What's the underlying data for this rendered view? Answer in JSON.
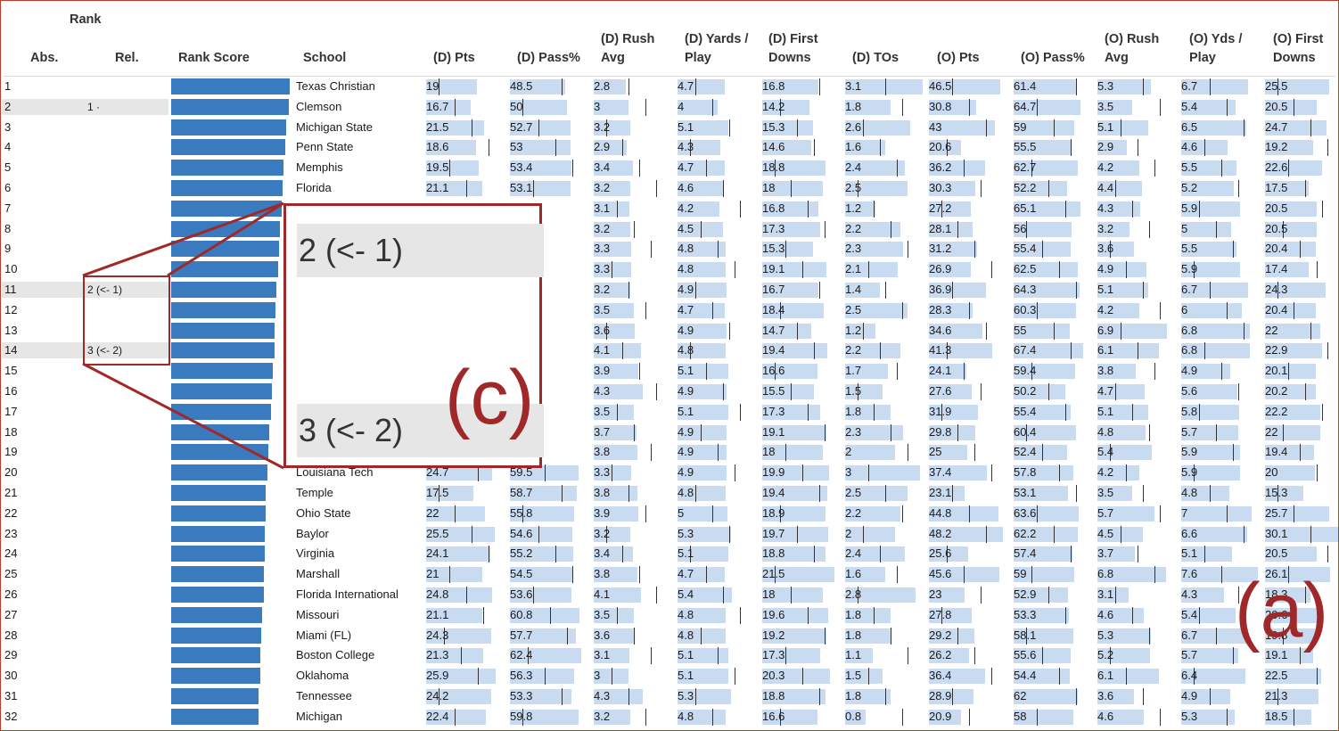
{
  "headers": {
    "rank": "Rank",
    "abs": "Abs.",
    "rel": "Rel.",
    "rank_score": "Rank Score",
    "school": "School",
    "stats": [
      [
        "(D) Pts"
      ],
      [
        "(D) Pass%"
      ],
      [
        "(D) Rush",
        "Avg"
      ],
      [
        "(D) Yards /",
        "Play"
      ],
      [
        "(D) First",
        "Downs"
      ],
      [
        "(D) TOs"
      ],
      [
        "(O) Pts"
      ],
      [
        "(O) Pass%"
      ],
      [
        "(O) Rush",
        "Avg"
      ],
      [
        "(O) Yds /",
        "Play"
      ],
      [
        "(O) First",
        "Downs"
      ]
    ]
  },
  "colors": {
    "rank_bar": "#3a7bbf",
    "stat_bar": "#c9dbf1",
    "highlight": "#e6e6e6",
    "callout": "#a02828"
  },
  "rows": [
    {
      "abs": "1",
      "rel": "",
      "school": "Texas Christian",
      "score": 100,
      "stats": [
        "19",
        "48.5",
        "2.8",
        "4.7",
        "16.8",
        "3.1",
        "46.5",
        "61.4",
        "5.3",
        "6.7",
        "25.5"
      ]
    },
    {
      "abs": "2",
      "rel": "1 ·",
      "school": "Clemson",
      "score": 99,
      "stats": [
        "16.7",
        "50",
        "3",
        "4",
        "14.2",
        "1.8",
        "30.8",
        "64.7",
        "3.5",
        "5.4",
        "20.5"
      ]
    },
    {
      "abs": "3",
      "rel": "",
      "school": "Michigan State",
      "score": 97,
      "stats": [
        "21.5",
        "52.7",
        "3.2",
        "5.1",
        "15.3",
        "2.6",
        "43",
        "59",
        "5.1",
        "6.5",
        "24.7"
      ]
    },
    {
      "abs": "4",
      "rel": "",
      "school": "Penn State",
      "score": 96,
      "stats": [
        "18.6",
        "53",
        "2.9",
        "4.3",
        "14.6",
        "1.6",
        "20.6",
        "55.5",
        "2.9",
        "4.6",
        "19.2"
      ]
    },
    {
      "abs": "5",
      "rel": "",
      "school": "Memphis",
      "score": 95,
      "stats": [
        "19.5",
        "53.4",
        "3.4",
        "4.7",
        "18.8",
        "2.4",
        "36.2",
        "62.7",
        "4.2",
        "5.5",
        "22.6"
      ]
    },
    {
      "abs": "6",
      "rel": "",
      "school": "Florida",
      "score": 94,
      "stats": [
        "21.1",
        "53.1",
        "3.2",
        "4.6",
        "18",
        "2.5",
        "30.3",
        "52.2",
        "4.4",
        "5.2",
        "17.5"
      ]
    },
    {
      "abs": "7",
      "rel": "",
      "school": "",
      "score": 93,
      "stats": [
        "",
        "",
        "3.1",
        "4.2",
        "16.8",
        "1.2",
        "27.2",
        "65.1",
        "4.3",
        "5.9",
        "20.5"
      ]
    },
    {
      "abs": "8",
      "rel": "",
      "school": "",
      "score": 92,
      "stats": [
        "",
        "",
        "3.2",
        "4.5",
        "17.3",
        "2.2",
        "28.1",
        "56",
        "3.2",
        "5",
        "20.5"
      ]
    },
    {
      "abs": "9",
      "rel": "",
      "school": "",
      "score": 91,
      "stats": [
        "",
        "",
        "3.3",
        "4.8",
        "15.3",
        "2.3",
        "31.2",
        "55.4",
        "3.6",
        "5.5",
        "20.4"
      ]
    },
    {
      "abs": "10",
      "rel": "",
      "school": "",
      "score": 90,
      "stats": [
        "",
        "",
        "3.3",
        "4.8",
        "19.1",
        "2.1",
        "26.9",
        "62.5",
        "4.9",
        "5.9",
        "17.4"
      ]
    },
    {
      "abs": "11",
      "rel": "2 (<- 1)",
      "school": "",
      "score": 89,
      "stats": [
        "",
        "",
        "3.2",
        "4.9",
        "16.7",
        "1.4",
        "36.9",
        "64.3",
        "5.1",
        "6.7",
        "24.3"
      ]
    },
    {
      "abs": "12",
      "rel": "",
      "school": "",
      "score": 88,
      "stats": [
        "",
        "",
        "3.5",
        "4.7",
        "18.4",
        "2.5",
        "28.3",
        "60.3",
        "4.2",
        "6",
        "20.4"
      ]
    },
    {
      "abs": "13",
      "rel": "",
      "school": "",
      "score": 87,
      "stats": [
        "",
        "",
        "3.6",
        "4.9",
        "14.7",
        "1.2",
        "34.6",
        "55",
        "6.9",
        "6.8",
        "22"
      ]
    },
    {
      "abs": "14",
      "rel": "3 (<- 2)",
      "school": "",
      "score": 87,
      "stats": [
        "",
        "",
        "4.1",
        "4.8",
        "19.4",
        "2.2",
        "41.3",
        "67.4",
        "6.1",
        "6.8",
        "22.9"
      ]
    },
    {
      "abs": "15",
      "rel": "",
      "school": "",
      "score": 86,
      "stats": [
        "",
        "",
        "3.9",
        "5.1",
        "16.6",
        "1.7",
        "24.1",
        "59.4",
        "3.8",
        "4.9",
        "20.1"
      ]
    },
    {
      "abs": "16",
      "rel": "",
      "school": "",
      "score": 85,
      "stats": [
        "",
        "",
        "4.3",
        "4.9",
        "15.5",
        "1.5",
        "27.6",
        "50.2",
        "4.7",
        "5.6",
        "20.2"
      ]
    },
    {
      "abs": "17",
      "rel": "",
      "school": "",
      "score": 84,
      "stats": [
        "",
        "",
        "3.5",
        "5.1",
        "17.3",
        "1.8",
        "31.9",
        "55.4",
        "5.1",
        "5.8",
        "22.2"
      ]
    },
    {
      "abs": "18",
      "rel": "",
      "school": "",
      "score": 83,
      "stats": [
        "",
        "",
        "3.7",
        "4.9",
        "19.1",
        "2.3",
        "29.8",
        "60.4",
        "4.8",
        "5.7",
        "22"
      ]
    },
    {
      "abs": "19",
      "rel": "",
      "school": "",
      "score": 82,
      "stats": [
        "",
        "",
        "3.8",
        "4.9",
        "18",
        "2",
        "25",
        "52.4",
        "5.4",
        "5.9",
        "19.4"
      ]
    },
    {
      "abs": "20",
      "rel": "",
      "school": "Louisiana Tech",
      "score": 81,
      "stats": [
        "24.7",
        "59.5",
        "3.3",
        "4.9",
        "19.9",
        "3",
        "37.4",
        "57.8",
        "4.2",
        "5.9",
        "20"
      ]
    },
    {
      "abs": "21",
      "rel": "",
      "school": "Temple",
      "score": 80,
      "stats": [
        "17.5",
        "58.7",
        "3.8",
        "4.8",
        "19.4",
        "2.5",
        "23.1",
        "53.1",
        "3.5",
        "4.8",
        "15.3"
      ]
    },
    {
      "abs": "22",
      "rel": "",
      "school": "Ohio State",
      "score": 80,
      "stats": [
        "22",
        "55.8",
        "3.9",
        "5",
        "18.9",
        "2.2",
        "44.8",
        "63.6",
        "5.7",
        "7",
        "25.7"
      ]
    },
    {
      "abs": "23",
      "rel": "",
      "school": "Baylor",
      "score": 79,
      "stats": [
        "25.5",
        "54.6",
        "3.2",
        "5.3",
        "19.7",
        "2",
        "48.2",
        "62.2",
        "4.5",
        "6.6",
        "30.1"
      ]
    },
    {
      "abs": "24",
      "rel": "",
      "school": "Virginia",
      "score": 79,
      "stats": [
        "24.1",
        "55.2",
        "3.4",
        "5.1",
        "18.8",
        "2.4",
        "25.6",
        "57.4",
        "3.7",
        "5.1",
        "20.5"
      ]
    },
    {
      "abs": "25",
      "rel": "",
      "school": "Marshall",
      "score": 78,
      "stats": [
        "21",
        "54.5",
        "3.8",
        "4.7",
        "21.5",
        "1.6",
        "45.6",
        "59",
        "6.8",
        "7.6",
        "26.1"
      ]
    },
    {
      "abs": "26",
      "rel": "",
      "school": "Florida International",
      "score": 78,
      "stats": [
        "24.8",
        "53.6",
        "4.1",
        "5.4",
        "18",
        "2.8",
        "23",
        "52.9",
        "3.1",
        "4.3",
        "18.3"
      ]
    },
    {
      "abs": "27",
      "rel": "",
      "school": "Missouri",
      "score": 77,
      "stats": [
        "21.1",
        "60.8",
        "3.5",
        "4.8",
        "19.6",
        "1.8",
        "27.8",
        "53.3",
        "4.6",
        "5.4",
        "20.6"
      ]
    },
    {
      "abs": "28",
      "rel": "",
      "school": "Miami (FL)",
      "score": 76,
      "stats": [
        "24.3",
        "57.7",
        "3.6",
        "4.8",
        "19.2",
        "1.8",
        "29.2",
        "58.1",
        "5.3",
        "6.7",
        "19.8"
      ]
    },
    {
      "abs": "29",
      "rel": "",
      "school": "Boston College",
      "score": 75,
      "stats": [
        "21.3",
        "62.4",
        "3.1",
        "5.1",
        "17.3",
        "1.1",
        "26.2",
        "55.6",
        "5.2",
        "5.7",
        "19.1"
      ]
    },
    {
      "abs": "30",
      "rel": "",
      "school": "Oklahoma",
      "score": 75,
      "stats": [
        "25.9",
        "56.3",
        "3",
        "5.1",
        "20.3",
        "1.5",
        "36.4",
        "54.4",
        "6.1",
        "6.4",
        "22.5"
      ]
    },
    {
      "abs": "31",
      "rel": "",
      "school": "Tennessee",
      "score": 74,
      "stats": [
        "24.2",
        "53.3",
        "4.3",
        "5.3",
        "18.8",
        "1.8",
        "28.9",
        "62",
        "3.6",
        "4.9",
        "21.3"
      ]
    },
    {
      "abs": "32",
      "rel": "",
      "school": "Michigan",
      "score": 74,
      "stats": [
        "22.4",
        "59.8",
        "3.2",
        "4.8",
        "16.6",
        "0.8",
        "20.9",
        "58",
        "4.6",
        "5.3",
        "18.5"
      ]
    }
  ],
  "zoom": {
    "row_a": "2 (<- 1)",
    "row_b": "3 (<- 2)",
    "label": "(c)"
  },
  "panel_label": "(a)"
}
